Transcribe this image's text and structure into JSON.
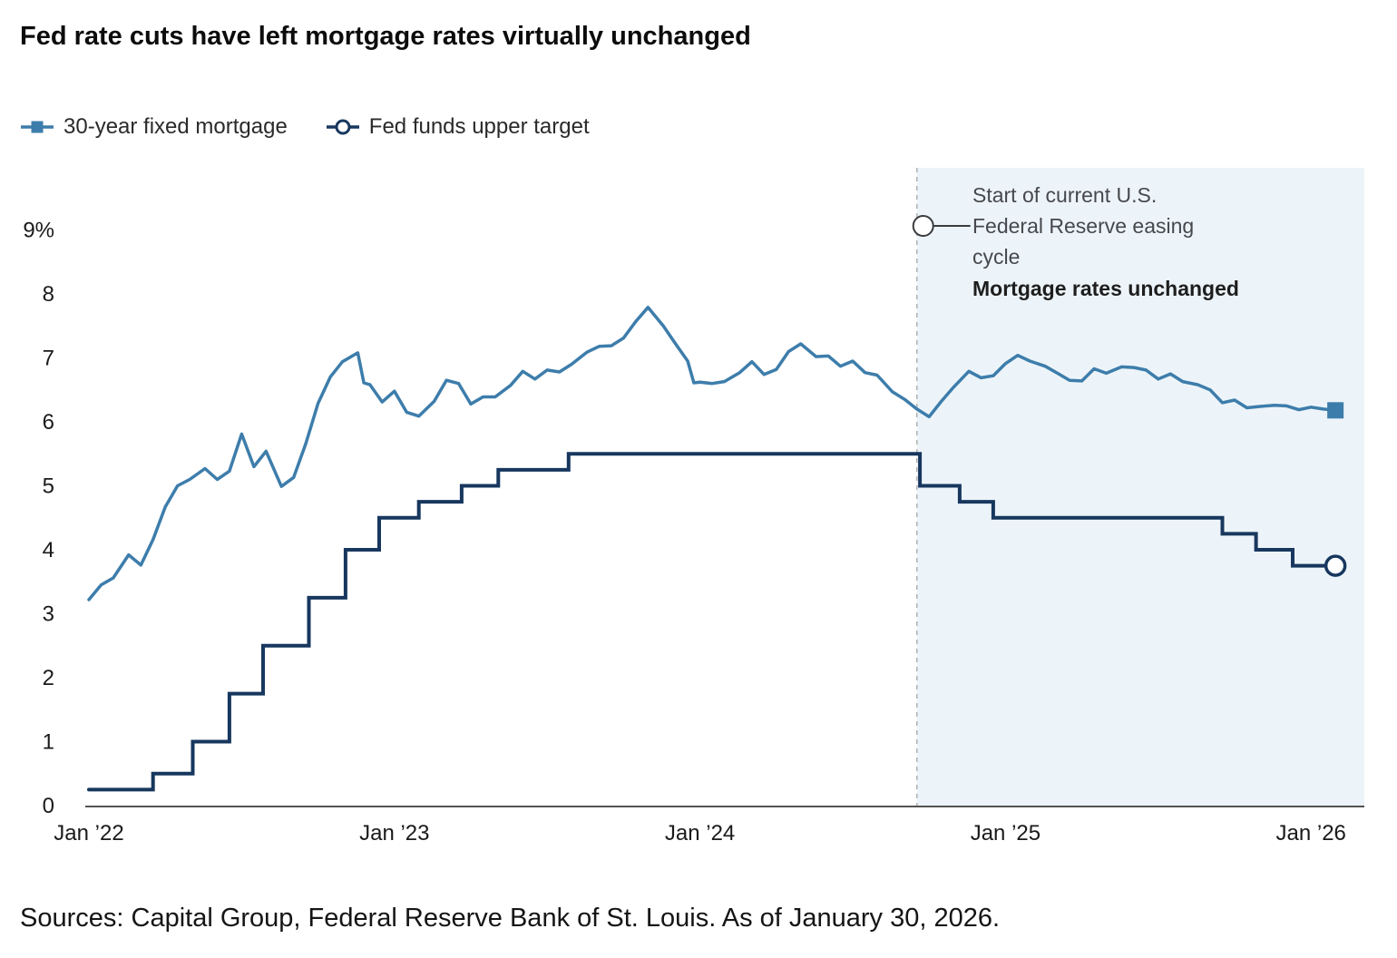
{
  "title": "Fed rate cuts have left mortgage rates virtually unchanged",
  "legend": [
    {
      "label": "30-year fixed mortgage",
      "marker": "square",
      "color": "#3d7dab"
    },
    {
      "label": "Fed funds upper target",
      "marker": "circle",
      "color": "#17375e"
    }
  ],
  "annotation": {
    "lines": [
      "Start of current U.S.",
      "Federal Reserve easing",
      "cycle"
    ],
    "bold_line": "Mortgage rates unchanged"
  },
  "source": "Sources: Capital Group, Federal Reserve Bank of St. Louis. As of January 30, 2026.",
  "colors": {
    "mortgage_line": "#3d7dab",
    "fed_funds_line": "#17375e",
    "shade": "#edf4f9",
    "dashed_line": "#b3b3b3",
    "axis": "#1a1a1a",
    "annotation_stroke": "#3a3c3f"
  },
  "chart_data": {
    "type": "line",
    "title": "Fed rate cuts have left mortgage rates virtually unchanged",
    "xlabel": "",
    "ylabel": "",
    "xlim": [
      2022,
      2026.08
    ],
    "ylim": [
      0,
      9
    ],
    "grid": false,
    "legend_position": "top-left",
    "easing_start_x": 2024.71,
    "shaded_region": {
      "from": 2024.71,
      "to": 2026.1
    },
    "x_ticks": [
      {
        "x": 2022,
        "label": "Jan ’22"
      },
      {
        "x": 2023,
        "label": "Jan ’23"
      },
      {
        "x": 2024,
        "label": "Jan ’24"
      },
      {
        "x": 2025,
        "label": "Jan ’25"
      },
      {
        "x": 2026,
        "label": "Jan ’26"
      }
    ],
    "y_ticks": [
      {
        "v": 0,
        "label": "0"
      },
      {
        "v": 1,
        "label": "1"
      },
      {
        "v": 2,
        "label": "2"
      },
      {
        "v": 3,
        "label": "3"
      },
      {
        "v": 4,
        "label": "4"
      },
      {
        "v": 5,
        "label": "5"
      },
      {
        "v": 6,
        "label": "6"
      },
      {
        "v": 7,
        "label": "7"
      },
      {
        "v": 8,
        "label": "8"
      },
      {
        "v": 9,
        "label": "9%"
      }
    ],
    "series": [
      {
        "name": "30-year fixed mortgage",
        "color": "#3d7dab",
        "end_marker": "square",
        "step": false,
        "points": [
          [
            2022.0,
            3.22
          ],
          [
            2022.04,
            3.45
          ],
          [
            2022.08,
            3.56
          ],
          [
            2022.13,
            3.92
          ],
          [
            2022.17,
            3.76
          ],
          [
            2022.21,
            4.16
          ],
          [
            2022.25,
            4.67
          ],
          [
            2022.29,
            5.0
          ],
          [
            2022.33,
            5.1
          ],
          [
            2022.38,
            5.27
          ],
          [
            2022.42,
            5.1
          ],
          [
            2022.46,
            5.23
          ],
          [
            2022.5,
            5.81
          ],
          [
            2022.54,
            5.3
          ],
          [
            2022.58,
            5.54
          ],
          [
            2022.63,
            4.99
          ],
          [
            2022.67,
            5.13
          ],
          [
            2022.71,
            5.66
          ],
          [
            2022.75,
            6.29
          ],
          [
            2022.79,
            6.7
          ],
          [
            2022.83,
            6.94
          ],
          [
            2022.88,
            7.08
          ],
          [
            2022.9,
            6.61
          ],
          [
            2022.92,
            6.58
          ],
          [
            2022.96,
            6.31
          ],
          [
            2023.0,
            6.48
          ],
          [
            2023.04,
            6.15
          ],
          [
            2023.08,
            6.09
          ],
          [
            2023.13,
            6.32
          ],
          [
            2023.17,
            6.65
          ],
          [
            2023.21,
            6.6
          ],
          [
            2023.25,
            6.28
          ],
          [
            2023.29,
            6.39
          ],
          [
            2023.33,
            6.39
          ],
          [
            2023.38,
            6.57
          ],
          [
            2023.42,
            6.79
          ],
          [
            2023.46,
            6.67
          ],
          [
            2023.5,
            6.81
          ],
          [
            2023.54,
            6.78
          ],
          [
            2023.58,
            6.9
          ],
          [
            2023.63,
            7.09
          ],
          [
            2023.67,
            7.18
          ],
          [
            2023.71,
            7.19
          ],
          [
            2023.75,
            7.31
          ],
          [
            2023.79,
            7.57
          ],
          [
            2023.83,
            7.79
          ],
          [
            2023.88,
            7.5
          ],
          [
            2023.92,
            7.22
          ],
          [
            2023.96,
            6.95
          ],
          [
            2023.98,
            6.61
          ],
          [
            2024.0,
            6.62
          ],
          [
            2024.04,
            6.6
          ],
          [
            2024.08,
            6.63
          ],
          [
            2024.13,
            6.77
          ],
          [
            2024.17,
            6.94
          ],
          [
            2024.21,
            6.74
          ],
          [
            2024.25,
            6.82
          ],
          [
            2024.29,
            7.1
          ],
          [
            2024.33,
            7.22
          ],
          [
            2024.38,
            7.02
          ],
          [
            2024.42,
            7.03
          ],
          [
            2024.46,
            6.87
          ],
          [
            2024.5,
            6.95
          ],
          [
            2024.54,
            6.77
          ],
          [
            2024.58,
            6.73
          ],
          [
            2024.63,
            6.47
          ],
          [
            2024.67,
            6.35
          ],
          [
            2024.71,
            6.2
          ],
          [
            2024.75,
            6.08
          ],
          [
            2024.79,
            6.32
          ],
          [
            2024.83,
            6.54
          ],
          [
            2024.88,
            6.79
          ],
          [
            2024.92,
            6.69
          ],
          [
            2024.96,
            6.72
          ],
          [
            2025.0,
            6.91
          ],
          [
            2025.04,
            7.04
          ],
          [
            2025.08,
            6.95
          ],
          [
            2025.13,
            6.87
          ],
          [
            2025.17,
            6.76
          ],
          [
            2025.21,
            6.65
          ],
          [
            2025.25,
            6.64
          ],
          [
            2025.29,
            6.83
          ],
          [
            2025.33,
            6.76
          ],
          [
            2025.38,
            6.86
          ],
          [
            2025.42,
            6.85
          ],
          [
            2025.46,
            6.81
          ],
          [
            2025.5,
            6.67
          ],
          [
            2025.54,
            6.75
          ],
          [
            2025.58,
            6.63
          ],
          [
            2025.63,
            6.58
          ],
          [
            2025.67,
            6.5
          ],
          [
            2025.71,
            6.3
          ],
          [
            2025.75,
            6.34
          ],
          [
            2025.79,
            6.22
          ],
          [
            2025.83,
            6.24
          ],
          [
            2025.88,
            6.26
          ],
          [
            2025.92,
            6.25
          ],
          [
            2025.96,
            6.19
          ],
          [
            2026.0,
            6.23
          ],
          [
            2026.04,
            6.2
          ],
          [
            2026.08,
            6.18
          ]
        ]
      },
      {
        "name": "Fed funds upper target",
        "color": "#17375e",
        "end_marker": "circle",
        "step": true,
        "points": [
          [
            2022.0,
            0.25
          ],
          [
            2022.21,
            0.25
          ],
          [
            2022.21,
            0.5
          ],
          [
            2022.34,
            0.5
          ],
          [
            2022.34,
            1.0
          ],
          [
            2022.46,
            1.0
          ],
          [
            2022.46,
            1.75
          ],
          [
            2022.57,
            1.75
          ],
          [
            2022.57,
            2.5
          ],
          [
            2022.72,
            2.5
          ],
          [
            2022.72,
            3.25
          ],
          [
            2022.84,
            3.25
          ],
          [
            2022.84,
            4.0
          ],
          [
            2022.95,
            4.0
          ],
          [
            2022.95,
            4.5
          ],
          [
            2023.08,
            4.5
          ],
          [
            2023.08,
            4.75
          ],
          [
            2023.22,
            4.75
          ],
          [
            2023.22,
            5.0
          ],
          [
            2023.34,
            5.0
          ],
          [
            2023.34,
            5.25
          ],
          [
            2023.57,
            5.25
          ],
          [
            2023.57,
            5.5
          ],
          [
            2024.72,
            5.5
          ],
          [
            2024.72,
            5.0
          ],
          [
            2024.85,
            5.0
          ],
          [
            2024.85,
            4.75
          ],
          [
            2024.96,
            4.75
          ],
          [
            2024.96,
            4.5
          ],
          [
            2025.71,
            4.5
          ],
          [
            2025.71,
            4.25
          ],
          [
            2025.82,
            4.25
          ],
          [
            2025.82,
            4.0
          ],
          [
            2025.94,
            4.0
          ],
          [
            2025.94,
            3.75
          ],
          [
            2026.08,
            3.75
          ]
        ]
      }
    ]
  }
}
